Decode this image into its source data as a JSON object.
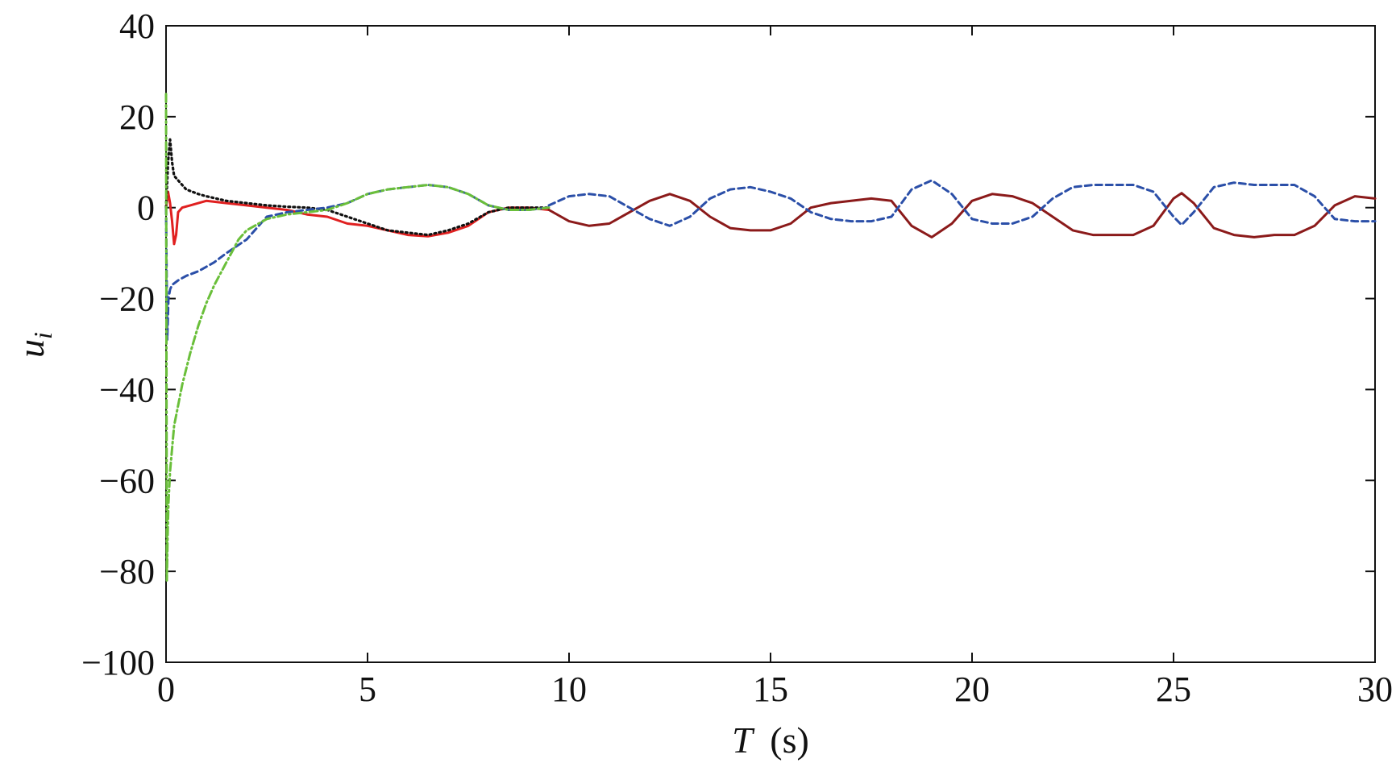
{
  "chart_data": {
    "type": "line",
    "title": "",
    "xlabel_var": "T",
    "xlabel_unit": "(s)",
    "ylabel_var": "u",
    "ylabel_sub": "i",
    "xlim": [
      0,
      30
    ],
    "ylim": [
      -100,
      40
    ],
    "xticks": [
      0,
      5,
      10,
      15,
      20,
      25,
      30
    ],
    "yticks": [
      -100,
      -80,
      -60,
      -40,
      -20,
      0,
      20,
      40
    ],
    "xtick_labels": [
      "0",
      "5",
      "10",
      "15",
      "20",
      "25",
      "30"
    ],
    "ytick_labels": [
      "−100",
      "−80",
      "−60",
      "−40",
      "−20",
      "0",
      "20",
      "40"
    ],
    "grid": false,
    "legend": "none",
    "series": [
      {
        "color": "#e02020",
        "style": "solid",
        "x": [
          0,
          0.05,
          0.1,
          0.15,
          0.2,
          0.25,
          0.3,
          0.4,
          0.6,
          1.0,
          1.5,
          2.0,
          2.5,
          3.0,
          3.5,
          4.0,
          4.5,
          5.0,
          5.5,
          6.0,
          6.5,
          7.0,
          7.5,
          8.0,
          8.5,
          9.0,
          9.5
        ],
        "y": [
          0,
          3.5,
          1.0,
          -3.0,
          -8.0,
          -6.0,
          -1.0,
          0.0,
          0.5,
          1.5,
          1.0,
          0.5,
          0.0,
          -0.5,
          -1.5,
          -2.0,
          -3.5,
          -4.0,
          -5.0,
          -6.0,
          -6.3,
          -5.5,
          -4.0,
          -1.0,
          0.0,
          0.0,
          -0.5
        ]
      },
      {
        "color": "#111111",
        "style": "dotted",
        "x": [
          0,
          0.05,
          0.1,
          0.15,
          0.2,
          0.3,
          0.5,
          0.8,
          1.0,
          1.5,
          2.0,
          2.5,
          3.0,
          3.5,
          4.0,
          4.5,
          5.0,
          5.5,
          6.0,
          6.5,
          7.0,
          7.5,
          8.0,
          8.5,
          9.0,
          9.5
        ],
        "y": [
          0,
          10,
          15,
          10,
          7,
          6,
          4,
          3,
          2.5,
          1.5,
          1.0,
          0.5,
          0.2,
          0.0,
          -0.5,
          -2.0,
          -3.5,
          -5.0,
          -5.5,
          -6.0,
          -5.0,
          -3.5,
          -1.0,
          0.0,
          0.0,
          0.0
        ]
      },
      {
        "color": "#2b4fa8",
        "style": "dashed",
        "x": [
          0,
          0.03,
          0.06,
          0.1,
          0.15,
          0.3,
          0.5,
          0.8,
          1.0,
          1.2,
          1.5,
          2.0,
          2.5,
          3.0,
          3.5,
          4.0,
          4.5,
          5.0,
          5.5,
          6.0,
          6.5,
          7.0,
          7.5,
          8.0,
          8.5,
          9.0,
          9.5
        ],
        "y": [
          0,
          -29,
          -20,
          -18,
          -17,
          -16,
          -15,
          -14,
          -13,
          -12,
          -10,
          -7,
          -2,
          -1.0,
          -0.5,
          0.0,
          1.0,
          3.0,
          4.0,
          4.5,
          5.0,
          4.5,
          3.0,
          0.5,
          -0.5,
          -0.5,
          0.0
        ]
      },
      {
        "color": "#6abf3a",
        "style": "dashdot",
        "x": [
          0,
          0.02,
          0.04,
          0.06,
          0.1,
          0.2,
          0.4,
          0.6,
          0.8,
          1.0,
          1.2,
          1.5,
          1.8,
          2.0,
          2.5,
          3.0,
          3.5,
          4.0,
          4.5,
          5.0,
          5.5,
          6.0,
          6.5,
          7.0,
          7.5,
          8.0,
          8.5,
          9.0,
          9.5
        ],
        "y": [
          25,
          -82,
          -72,
          -65,
          -58,
          -48,
          -39,
          -32,
          -26,
          -21,
          -17,
          -12,
          -7,
          -5,
          -2.5,
          -1.5,
          -1.0,
          -0.5,
          1.0,
          3.0,
          4.0,
          4.5,
          5.0,
          4.5,
          3.0,
          0.5,
          -0.5,
          -0.5,
          0.0
        ]
      },
      {
        "color": "#8b1a1a",
        "style": "solid",
        "x": [
          9.5,
          10.0,
          10.5,
          11.0,
          11.5,
          12.0,
          12.5,
          13.0,
          13.5,
          14.0,
          14.5,
          15.0,
          15.5,
          16.0,
          16.5,
          17.0,
          17.5,
          18.0,
          18.5,
          19.0,
          19.5,
          20.0,
          20.5,
          21.0,
          21.5,
          22.0,
          22.5,
          23.0,
          23.5,
          24.0,
          24.5,
          25.0,
          25.2,
          25.5,
          26.0,
          26.5,
          27.0,
          27.5,
          28.0,
          28.5,
          29.0,
          29.5,
          30.0
        ],
        "y": [
          -0.5,
          -3.0,
          -4.0,
          -3.5,
          -1.0,
          1.5,
          3.0,
          1.5,
          -2.0,
          -4.5,
          -5.0,
          -5.0,
          -3.5,
          0.0,
          1.0,
          1.5,
          2.0,
          1.5,
          -4.0,
          -6.5,
          -3.5,
          1.5,
          3.0,
          2.5,
          1.0,
          -2.0,
          -5.0,
          -6.0,
          -6.0,
          -6.0,
          -4.0,
          2.0,
          3.2,
          1.0,
          -4.5,
          -6.0,
          -6.5,
          -6.0,
          -6.0,
          -4.0,
          0.5,
          2.5,
          2.0
        ]
      },
      {
        "color": "#2b4fa8",
        "style": "dashed",
        "x": [
          9.5,
          10.0,
          10.5,
          11.0,
          11.5,
          12.0,
          12.5,
          13.0,
          13.5,
          14.0,
          14.5,
          15.0,
          15.5,
          16.0,
          16.5,
          17.0,
          17.5,
          18.0,
          18.5,
          19.0,
          19.5,
          20.0,
          20.5,
          21.0,
          21.5,
          22.0,
          22.5,
          23.0,
          23.5,
          24.0,
          24.5,
          25.0,
          25.2,
          25.5,
          26.0,
          26.5,
          27.0,
          27.5,
          28.0,
          28.5,
          29.0,
          29.5,
          30.0
        ],
        "y": [
          0.5,
          2.5,
          3.0,
          2.5,
          0.0,
          -2.5,
          -4.0,
          -2.0,
          2.0,
          4.0,
          4.5,
          3.5,
          2.0,
          -1.0,
          -2.5,
          -3.0,
          -3.0,
          -2.0,
          4.0,
          6.0,
          3.0,
          -2.5,
          -3.5,
          -3.5,
          -2.0,
          2.0,
          4.5,
          5.0,
          5.0,
          5.0,
          3.5,
          -2.0,
          -3.8,
          -1.0,
          4.5,
          5.5,
          5.0,
          5.0,
          5.0,
          2.5,
          -2.5,
          -3.0,
          -3.0
        ]
      }
    ]
  }
}
